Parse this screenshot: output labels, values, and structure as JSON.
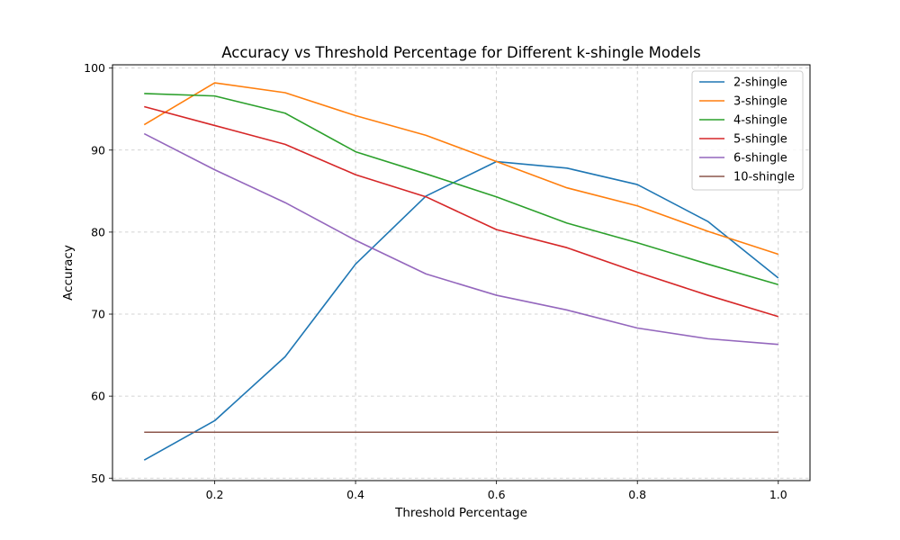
{
  "chart_data": {
    "type": "line",
    "title": "Accuracy vs Threshold Percentage for Different k-shingle Models",
    "xlabel": "Threshold Percentage",
    "ylabel": "Accuracy",
    "xlim": [
      0.055,
      1.045
    ],
    "ylim": [
      49.7,
      100.4
    ],
    "xticks": [
      0.2,
      0.4,
      0.6,
      0.8,
      1.0
    ],
    "xtick_labels": [
      "0.2",
      "0.4",
      "0.6",
      "0.8",
      "1.0"
    ],
    "yticks": [
      50,
      60,
      70,
      80,
      90,
      100
    ],
    "ytick_labels": [
      "50",
      "60",
      "70",
      "80",
      "90",
      "100"
    ],
    "grid": true,
    "legend_position": "top-right",
    "x": [
      0.1,
      0.2,
      0.3,
      0.4,
      0.5,
      0.6,
      0.7,
      0.8,
      0.9,
      1.0
    ],
    "series": [
      {
        "name": "2-shingle",
        "color": "#1f77b4",
        "values": [
          52.2,
          57.0,
          64.8,
          76.1,
          84.4,
          88.6,
          87.8,
          85.8,
          81.3,
          74.4
        ]
      },
      {
        "name": "3-shingle",
        "color": "#ff7f0e",
        "values": [
          93.1,
          98.2,
          97.0,
          94.2,
          91.8,
          88.6,
          85.4,
          83.2,
          80.1,
          77.3
        ]
      },
      {
        "name": "4-shingle",
        "color": "#2ca02c",
        "values": [
          96.9,
          96.6,
          94.5,
          89.8,
          87.1,
          84.3,
          81.1,
          78.7,
          76.1,
          73.6
        ]
      },
      {
        "name": "5-shingle",
        "color": "#d62728",
        "values": [
          95.3,
          93.0,
          90.7,
          87.0,
          84.3,
          80.3,
          78.1,
          75.1,
          72.3,
          69.7
        ]
      },
      {
        "name": "6-shingle",
        "color": "#9467bd",
        "values": [
          92.0,
          87.6,
          83.6,
          79.0,
          74.9,
          72.3,
          70.5,
          68.3,
          67.0,
          66.3
        ]
      },
      {
        "name": "10-shingle",
        "color": "#8c564b",
        "values": [
          55.6,
          55.6,
          55.6,
          55.6,
          55.6,
          55.6,
          55.6,
          55.6,
          55.6,
          55.6
        ]
      }
    ]
  }
}
